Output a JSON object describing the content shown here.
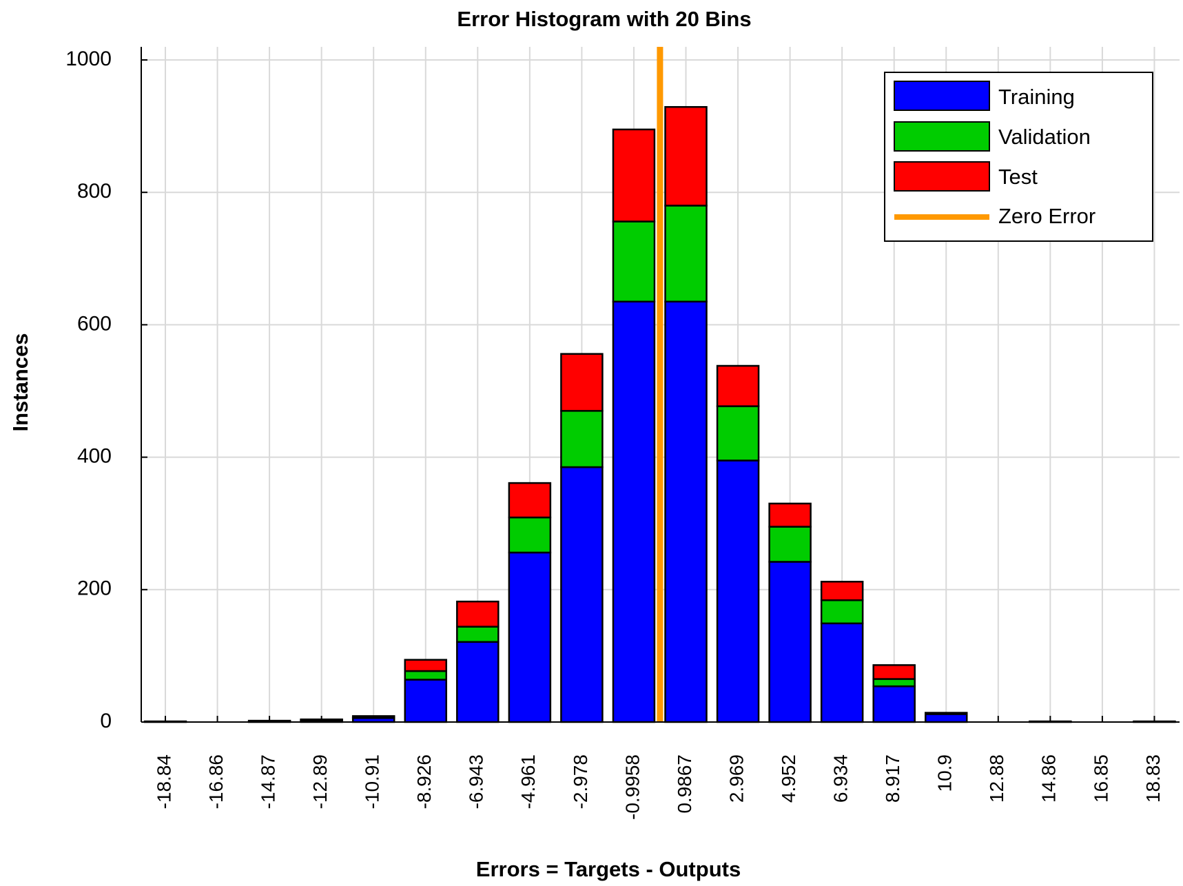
{
  "chart_data": {
    "type": "bar",
    "stacked": true,
    "title": "Error Histogram with 20 Bins",
    "xlabel": "Errors = Targets - Outputs",
    "ylabel": "Instances",
    "ylim": [
      0,
      1000
    ],
    "yticks": [
      "0",
      "200",
      "400",
      "600",
      "800",
      "1000"
    ],
    "categories": [
      "-18.84",
      "-16.86",
      "-14.87",
      "-12.89",
      "-10.91",
      "-8.926",
      "-6.943",
      "-4.961",
      "-2.978",
      "-0.9958",
      "0.9867",
      "2.969",
      "4.952",
      "6.934",
      "8.917",
      "10.9",
      "12.88",
      "14.86",
      "16.85",
      "18.83"
    ],
    "series": [
      {
        "name": "Training",
        "color": "#0000ff",
        "values": [
          1,
          0,
          1,
          2,
          6,
          64,
          121,
          256,
          385,
          635,
          635,
          395,
          242,
          149,
          54,
          12,
          0,
          1,
          0,
          1
        ]
      },
      {
        "name": "Validation",
        "color": "#00cc00",
        "values": [
          0,
          0,
          0,
          1,
          1,
          13,
          23,
          53,
          85,
          121,
          145,
          82,
          53,
          35,
          11,
          1,
          0,
          0,
          0,
          0
        ]
      },
      {
        "name": "Test",
        "color": "#ff0000",
        "values": [
          0,
          0,
          1,
          1,
          2,
          17,
          38,
          52,
          86,
          139,
          149,
          61,
          35,
          28,
          21,
          1,
          0,
          0,
          0,
          0
        ]
      }
    ],
    "zero_error": {
      "name": "Zero Error",
      "color": "#ff9900",
      "x": 0
    },
    "legend_position": "top-right",
    "grid": true
  }
}
